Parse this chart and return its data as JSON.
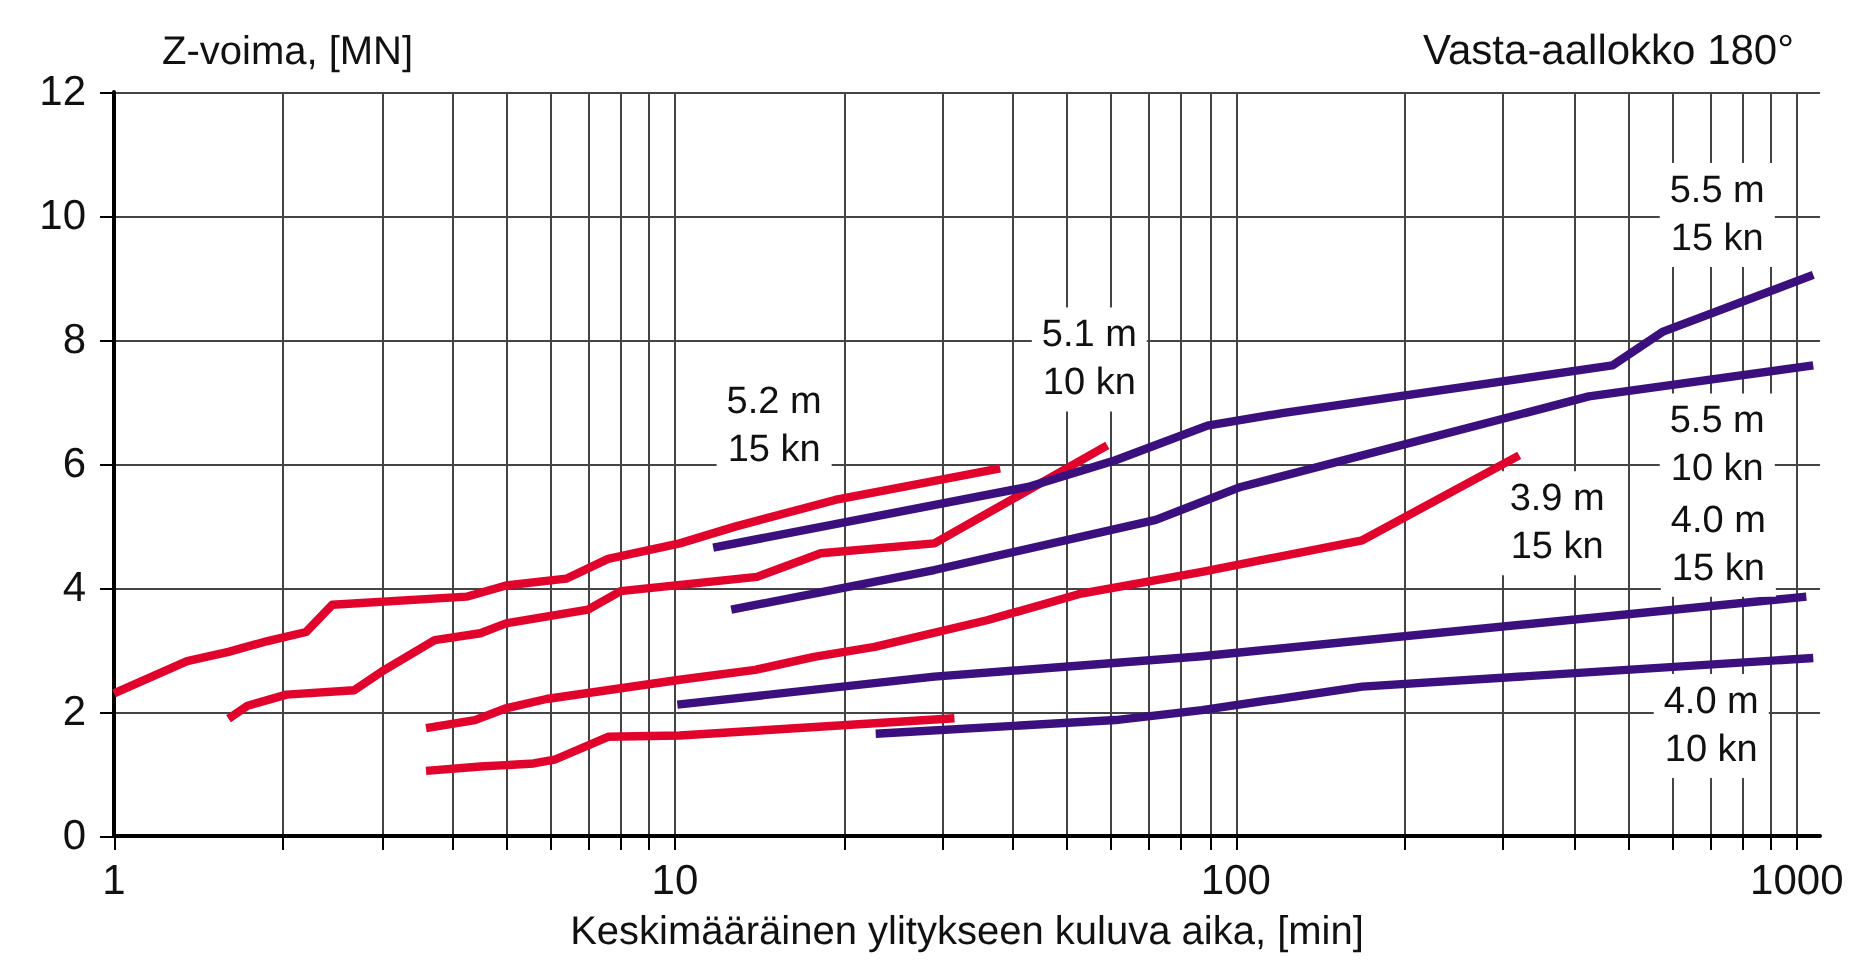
{
  "chart_data": {
    "type": "line",
    "title": "Vasta-aallokko 180°",
    "xlabel": "Keskimääräinen ylitykseen kuluva aika, [min]",
    "ylabel": "Z-voima, [MN]",
    "log": "x",
    "grid": true,
    "marker": "none",
    "line_style": "solid",
    "xlim": [
      1,
      1100
    ],
    "ylim": [
      0,
      12
    ],
    "xticks": [
      1,
      {
        "value": 2,
        "label": null
      },
      {
        "value": 3,
        "label": null
      },
      {
        "value": 4,
        "label": null
      },
      {
        "value": 5,
        "label": null
      },
      {
        "value": 6,
        "label": null
      },
      {
        "value": 7,
        "label": null
      },
      {
        "value": 8,
        "label": null
      },
      {
        "value": 9,
        "label": null
      },
      10,
      {
        "value": 20,
        "label": null
      },
      {
        "value": 30,
        "label": null
      },
      {
        "value": 40,
        "label": null
      },
      {
        "value": 50,
        "label": null
      },
      {
        "value": 60,
        "label": null
      },
      {
        "value": 70,
        "label": null
      },
      {
        "value": 80,
        "label": null
      },
      {
        "value": 90,
        "label": null
      },
      100,
      {
        "value": 200,
        "label": null
      },
      {
        "value": 300,
        "label": null
      },
      {
        "value": 400,
        "label": null
      },
      {
        "value": 500,
        "label": null
      },
      {
        "value": 600,
        "label": null
      },
      {
        "value": 700,
        "label": null
      },
      {
        "value": 800,
        "label": null
      },
      {
        "value": 900,
        "label": null
      },
      1000
    ],
    "yticks": [
      0,
      2,
      4,
      6,
      8,
      10,
      12
    ],
    "series": [
      {
        "name": "5.2 m\n15 kn",
        "color": "#e2032d",
        "x": [
          1,
          1.35,
          1.6,
          1.87,
          2.2,
          2.45,
          4.25,
          5.0,
          6.4,
          7.6,
          10.2,
          12.8,
          19.3,
          38
        ],
        "values": [
          2.3,
          2.82,
          2.97,
          3.14,
          3.29,
          3.73,
          3.86,
          4.04,
          4.15,
          4.47,
          4.72,
          4.99,
          5.42,
          5.93
        ]
      },
      {
        "name": "5.1 m\n10 kn",
        "color": "#e2032d",
        "x": [
          1.6,
          1.73,
          2.03,
          2.68,
          3.0,
          3.73,
          4.5,
          5.0,
          7.0,
          8.0,
          14,
          18.2,
          29,
          59
        ],
        "values": [
          1.89,
          2.1,
          2.28,
          2.35,
          2.65,
          3.16,
          3.27,
          3.43,
          3.65,
          3.95,
          4.18,
          4.56,
          4.72,
          6.3
        ]
      },
      {
        "name": "3.9 m\n15 kn",
        "color": "#e2032d",
        "x": [
          3.6,
          4.4,
          5.0,
          5.9,
          10.2,
          13.9,
          17.7,
          22.7,
          36,
          53,
          87,
          168,
          320
        ],
        "values": [
          1.74,
          1.87,
          2.06,
          2.21,
          2.52,
          2.68,
          2.89,
          3.05,
          3.48,
          3.91,
          4.26,
          4.77,
          6.14
        ]
      },
      {
        "color": "#e2032d",
        "x": [
          3.6,
          4.5,
          5.6,
          6.1,
          7.6,
          10.2,
          14.6,
          31.5
        ],
        "values": [
          1.05,
          1.12,
          1.17,
          1.23,
          1.6,
          1.62,
          1.71,
          1.9
        ]
      },
      {
        "name": "5.5 m\n15 kn",
        "color": "#3b0f7e",
        "x": [
          11.7,
          42.6,
          61,
          89,
          121,
          469,
          576,
          1070
        ],
        "values": [
          4.65,
          5.63,
          6.06,
          6.62,
          6.82,
          7.59,
          8.13,
          9.05
        ]
      },
      {
        "name": "5.5 m\n10 kn",
        "color": "#3b0f7e",
        "x": [
          12.6,
          29,
          72,
          102,
          426,
          1070
        ],
        "values": [
          3.65,
          4.29,
          5.1,
          5.63,
          7.09,
          7.59
        ]
      },
      {
        "name": "4.0 m\n15 kn",
        "color": "#3b0f7e",
        "x": [
          10.1,
          29,
          87,
          1040
        ],
        "values": [
          2.12,
          2.57,
          2.9,
          3.86
        ]
      },
      {
        "name": "4.0 m\n10 kn",
        "color": "#3b0f7e",
        "x": [
          22.8,
          61,
          87,
          168,
          1070
        ],
        "values": [
          1.65,
          1.87,
          2.03,
          2.41,
          2.87
        ]
      }
    ]
  }
}
